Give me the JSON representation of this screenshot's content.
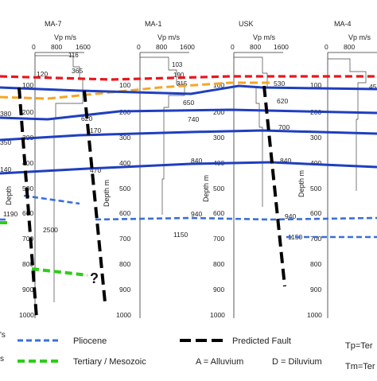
{
  "wells": [
    {
      "name": "MA-7",
      "vp_label": "Vp m/s",
      "ticks": [
        "0",
        "800",
        "1600"
      ],
      "depths": [
        "100",
        "200",
        "300",
        "400",
        "500",
        "600",
        "700",
        "800",
        "900",
        "1000"
      ],
      "vel_labels": [
        "116",
        "365",
        "620",
        "470",
        "2500",
        "1190",
        "?"
      ]
    },
    {
      "name": "MA-1",
      "vp_label": "Vp m/s",
      "ticks": [
        "0",
        "800",
        "1600"
      ],
      "depths": [
        "100",
        "200",
        "300",
        "400",
        "500",
        "600",
        "700",
        "800",
        "900",
        "1000"
      ],
      "vel_labels": [
        "103",
        "190",
        "315",
        "650",
        "740",
        "840",
        "940",
        "1150"
      ]
    },
    {
      "name": "USK",
      "vp_label": "Vp m/s",
      "ticks": [
        "0",
        "800",
        "1600"
      ],
      "depths": [
        "100",
        "200",
        "300",
        "400",
        "500",
        "600",
        "700",
        "800",
        "900",
        "1000"
      ],
      "vel_labels": [
        "530",
        "620",
        "700",
        "840",
        "940",
        "1150"
      ]
    },
    {
      "name": "MA-4",
      "vp_label": "Vp m/s",
      "ticks": [
        "0",
        "800"
      ],
      "depths": [
        "100",
        "200",
        "300",
        "400",
        "500",
        "600",
        "700",
        "800",
        "900",
        "1000"
      ],
      "vel_labels": [
        "45"
      ]
    }
  ],
  "depth_axis_label": "Depth m",
  "partial_labels": {
    "ma7_side_depth": "Depth",
    "ma7_side_m": "m",
    "ma7_layer": "120",
    "ma7_170": "170",
    "left_sides": [
      "380",
      "140",
      "350"
    ],
    "ma7_1190_v": "1190",
    "legend_cut_top": "'s",
    "legend_cut_bot": "s"
  },
  "legend": {
    "pliocene": "Pliocene",
    "tertiary": "Tertiary / Mesozoic",
    "predicted_fault": "Predicted Fault",
    "alluvium": "A = Alluvium",
    "diluvium": "D = Diluvium",
    "tp": "Tp=Ter",
    "tm": "Tm=Ter"
  },
  "colors": {
    "red": "#e8171d",
    "orange": "#f5a623",
    "blue": "#1f3fbf",
    "light_blue": "#3a6fd8",
    "green": "#2ecc1a",
    "black": "#000000"
  }
}
